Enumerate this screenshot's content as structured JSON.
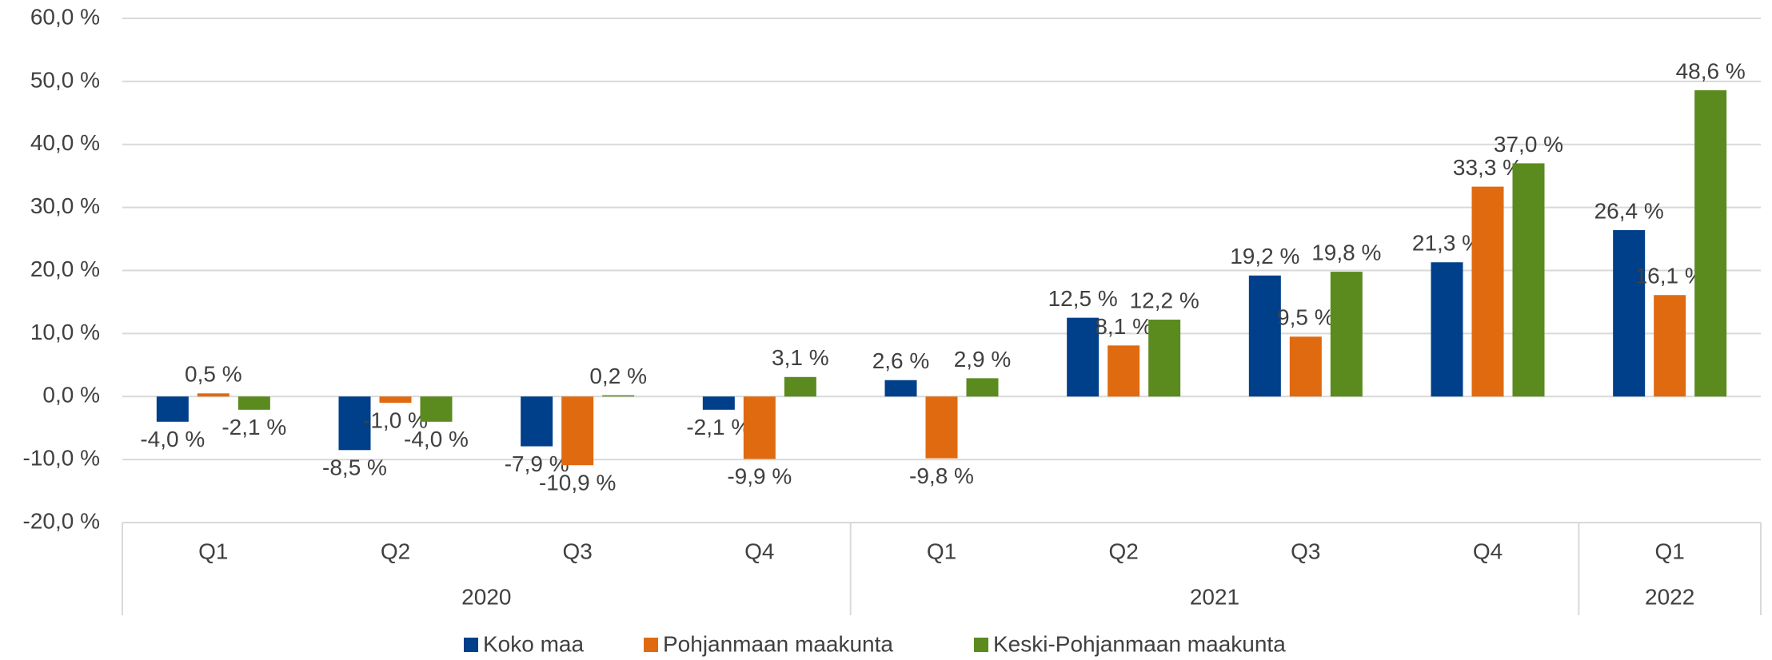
{
  "chart_data": {
    "type": "bar",
    "categories": [
      "Q1",
      "Q2",
      "Q3",
      "Q4",
      "Q1",
      "Q2",
      "Q3",
      "Q4",
      "Q1"
    ],
    "groups": [
      {
        "name": "2020",
        "count": 4
      },
      {
        "name": "2021",
        "count": 4
      },
      {
        "name": "2022",
        "count": 1
      }
    ],
    "series": [
      {
        "name": "Koko maa",
        "color": "#003f8a",
        "values": [
          -4.0,
          -8.5,
          -7.9,
          -2.1,
          2.6,
          12.5,
          19.2,
          21.3,
          26.4
        ],
        "value_labels": [
          "-4,0 %",
          "-8,5 %",
          "-7,9 %",
          "-2,1 %",
          "2,6 %",
          "12,5 %",
          "19,2 %",
          "21,3 %",
          "26,4 %"
        ]
      },
      {
        "name": "Pohjanmaan maakunta",
        "color": "#e06a10",
        "values": [
          0.5,
          -1.0,
          -10.9,
          -9.9,
          -9.8,
          8.1,
          9.5,
          33.3,
          16.1
        ],
        "value_labels": [
          "0,5 %",
          "-1,0 %",
          "-10,9 %",
          "-9,9 %",
          "-9,8 %",
          "8,1 %",
          "9,5 %",
          "33,3 %",
          "16,1 %"
        ]
      },
      {
        "name": "Keski-Pohjanmaan maakunta",
        "color": "#5b8a1e",
        "values": [
          -2.1,
          -4.0,
          0.2,
          3.1,
          2.9,
          12.2,
          19.8,
          37.0,
          48.6
        ],
        "value_labels": [
          "-2,1 %",
          "-4,0 %",
          "0,2 %",
          "3,1 %",
          "2,9 %",
          "12,2 %",
          "19,8 %",
          "37,0 %",
          "48,6 %"
        ]
      }
    ],
    "ylim": [
      -20,
      60
    ],
    "yticks": [
      {
        "value": -20,
        "label": "-20,0 %"
      },
      {
        "value": -10,
        "label": "-10,0 %"
      },
      {
        "value": 0,
        "label": "0,0 %"
      },
      {
        "value": 10,
        "label": "10,0 %"
      },
      {
        "value": 20,
        "label": "20,0 %"
      },
      {
        "value": 30,
        "label": "30,0 %"
      },
      {
        "value": 40,
        "label": "40,0 %"
      },
      {
        "value": 50,
        "label": "50,0 %"
      },
      {
        "value": 60,
        "label": "60,0 %"
      }
    ],
    "grid": true,
    "legend": "bottom"
  }
}
